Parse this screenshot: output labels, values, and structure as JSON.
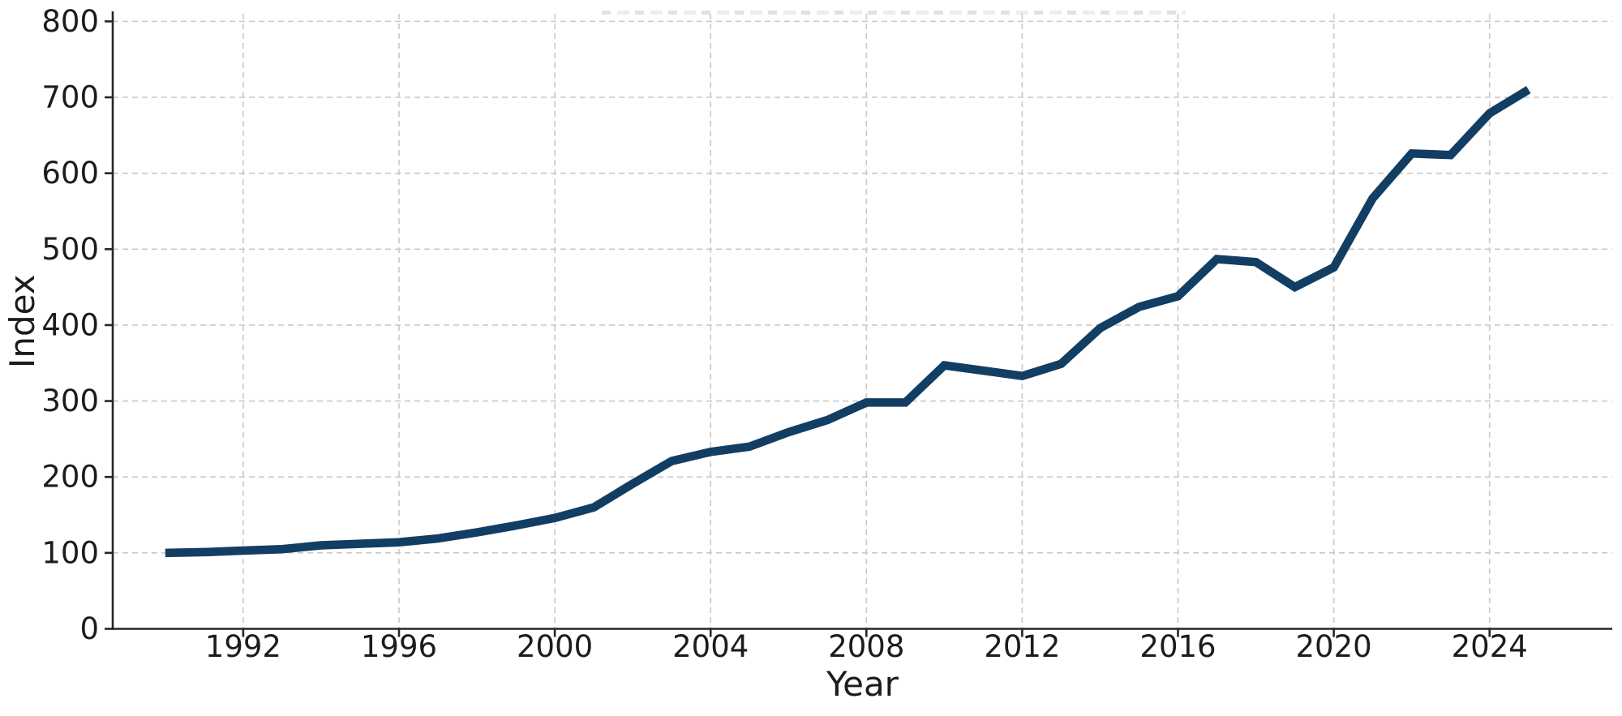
{
  "chart_data": {
    "type": "line",
    "title": "",
    "xlabel": "Year",
    "ylabel": "Index",
    "x": [
      1990,
      1991,
      1992,
      1993,
      1994,
      1995,
      1996,
      1997,
      1998,
      1999,
      2000,
      2001,
      2002,
      2003,
      2004,
      2005,
      2006,
      2007,
      2008,
      2009,
      2010,
      2011,
      2012,
      2013,
      2014,
      2015,
      2016,
      2017,
      2018,
      2019,
      2020,
      2021,
      2022,
      2023,
      2024,
      2025
    ],
    "series": [
      {
        "name": "Index",
        "color": "#123e63",
        "line_width": 10.5,
        "values": [
          100,
          101,
          103,
          105,
          110,
          112,
          114,
          119,
          127,
          136,
          146,
          160,
          191,
          221,
          233,
          240,
          259,
          275,
          298,
          298,
          347,
          340,
          333,
          349,
          396,
          424,
          438,
          487,
          483,
          450,
          476,
          567,
          626,
          624,
          679,
          710
        ]
      }
    ],
    "xticks": [
      1992,
      1996,
      2000,
      2004,
      2008,
      2012,
      2016,
      2020,
      2024
    ],
    "yticks": [
      0,
      100,
      200,
      300,
      400,
      500,
      600,
      700,
      800
    ],
    "xlim": [
      1988.65,
      2027.15
    ],
    "ylim": [
      0,
      810
    ],
    "grid": true,
    "grid_style": "dashed",
    "legend": false,
    "colors": {
      "grid": "#c9c9c9",
      "spine": "#262626",
      "tick_label": "#1c1c1c",
      "axis_label": "#1c1c1c",
      "background": "#ffffff"
    }
  }
}
